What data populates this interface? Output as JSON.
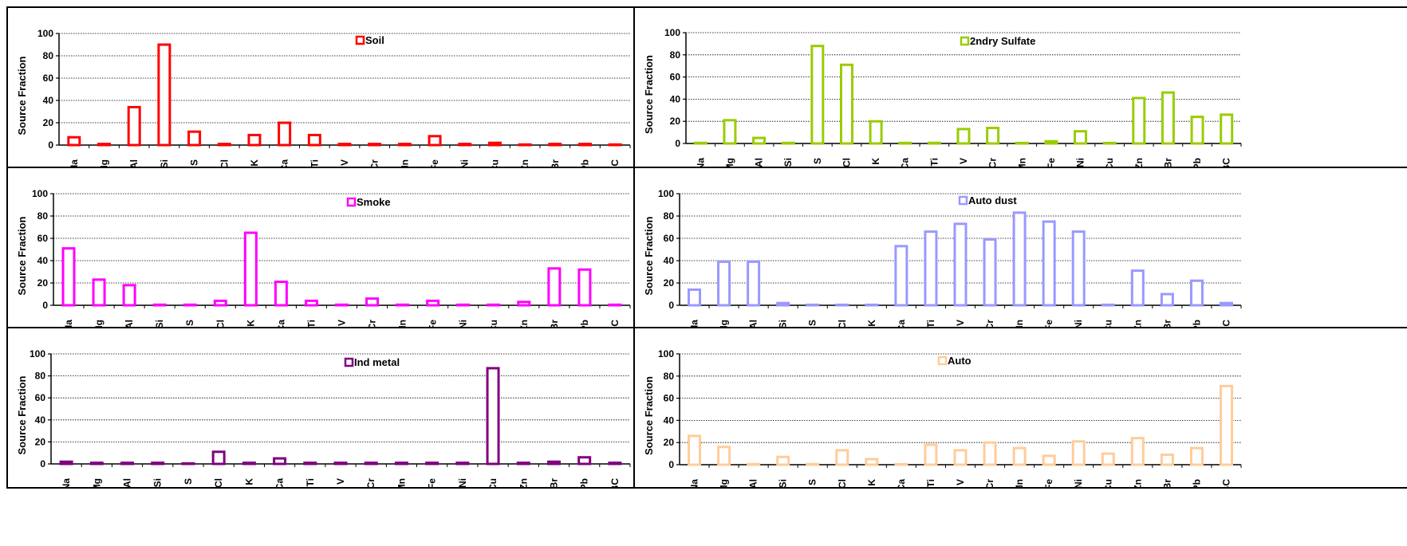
{
  "chart_data": [
    {
      "type": "bar",
      "series": [
        {
          "name": "Soil",
          "color": "#ff0000",
          "values": [
            7,
            1,
            34,
            90,
            12,
            1,
            9,
            20,
            9,
            1,
            1,
            1,
            8,
            1,
            2,
            0.5,
            1,
            1,
            0.5
          ]
        }
      ],
      "categories": [
        "Na",
        "Mg",
        "Al",
        "Si",
        "S",
        "Cl",
        "K",
        "Ca",
        "Ti",
        "V",
        "Cr",
        "Mn",
        "Fe",
        "Ni",
        "Cu",
        "Zn",
        "Br",
        "Pb",
        "BC"
      ],
      "ylabel": "Source Fraction",
      "ylim": [
        0,
        100
      ],
      "yticks": [
        "0",
        "20",
        "40",
        "60",
        "80",
        "100"
      ],
      "grid": true,
      "legend": "top-center"
    },
    {
      "type": "bar",
      "series": [
        {
          "name": "2ndry Sulfate",
          "color": "#99cc00",
          "values": [
            0.5,
            21,
            5,
            0.5,
            88,
            71,
            20,
            0.5,
            0.5,
            13,
            14,
            0.3,
            2,
            11,
            0.3,
            41,
            46,
            24,
            26
          ]
        }
      ],
      "categories": [
        "Na",
        "Mg",
        "Al",
        "Si",
        "S",
        "Cl",
        "K",
        "Ca",
        "Ti",
        "V",
        "Cr",
        "Mn",
        "Fe",
        "Ni",
        "Cu",
        "Zn",
        "Br",
        "Pb",
        "BC"
      ],
      "ylabel": "Source Fraction",
      "ylim": [
        0,
        100
      ],
      "yticks": [
        "0",
        "20",
        "40",
        "60",
        "80",
        "100"
      ],
      "grid": true,
      "legend": "top-center"
    },
    {
      "type": "bar",
      "series": [
        {
          "name": "Smoke",
          "color": "#ff00ff",
          "values": [
            51,
            23,
            18,
            0.5,
            0.5,
            4,
            65,
            21,
            4,
            0.5,
            6,
            0.5,
            4,
            0.5,
            0.5,
            3,
            33,
            32,
            0.5
          ]
        }
      ],
      "categories": [
        "Na",
        "Mg",
        "Al",
        "Si",
        "S",
        "Cl",
        "K",
        "Ca",
        "Ti",
        "V",
        "Cr",
        "Mn",
        "Fe",
        "Ni",
        "Cu",
        "Zn",
        "Br",
        "Pb",
        "BC"
      ],
      "ylabel": "Source Fraction",
      "ylim": [
        0,
        100
      ],
      "yticks": [
        "0",
        "20",
        "40",
        "60",
        "80",
        "100"
      ],
      "grid": true,
      "legend": "top-center"
    },
    {
      "type": "bar",
      "series": [
        {
          "name": "Auto dust",
          "color": "#9999ff",
          "values": [
            14,
            39,
            39,
            2,
            0.3,
            0.3,
            0.3,
            53,
            66,
            73,
            59,
            83,
            75,
            66,
            0.3,
            31,
            10,
            22,
            2
          ]
        }
      ],
      "categories": [
        "Na",
        "Mg",
        "Al",
        "Si",
        "S",
        "Cl",
        "K",
        "Ca",
        "Ti",
        "V",
        "Cr",
        "Mn",
        "Fe",
        "Ni",
        "Cu",
        "Zn",
        "Br",
        "Pb",
        "BC"
      ],
      "ylabel": "Source Fraction",
      "ylim": [
        0,
        100
      ],
      "yticks": [
        "0",
        "20",
        "40",
        "60",
        "80",
        "100"
      ],
      "grid": true,
      "legend": "top-center"
    },
    {
      "type": "bar",
      "series": [
        {
          "name": "Ind metal",
          "color": "#800080",
          "values": [
            2,
            1,
            1,
            1,
            0.3,
            11,
            1,
            5,
            1,
            1,
            1,
            1,
            1,
            1,
            87,
            1,
            2,
            6,
            1
          ]
        }
      ],
      "categories": [
        "Na",
        "Mg",
        "Al",
        "Si",
        "S",
        "Cl",
        "K",
        "Ca",
        "Ti",
        "V",
        "Cr",
        "Mn",
        "Fe",
        "Ni",
        "Cu",
        "Zn",
        "Br",
        "Pb",
        "BC"
      ],
      "ylabel": "Source Fraction",
      "ylim": [
        0,
        100
      ],
      "yticks": [
        "0",
        "20",
        "40",
        "60",
        "80",
        "100"
      ],
      "grid": true,
      "legend": "top-center"
    },
    {
      "type": "bar",
      "series": [
        {
          "name": "Auto",
          "color": "#ffcc99",
          "values": [
            26,
            16,
            0.5,
            7,
            0.5,
            13,
            5,
            0,
            18,
            13,
            20,
            15,
            8,
            21,
            10,
            24,
            9,
            15,
            71
          ]
        }
      ],
      "categories": [
        "Na",
        "Mg",
        "Al",
        "Si",
        "S",
        "Cl",
        "K",
        "Ca",
        "Ti",
        "V",
        "Cr",
        "Mn",
        "Fe",
        "Ni",
        "Cu",
        "Zn",
        "Br",
        "Pb",
        "BC"
      ],
      "ylabel": "Source Fraction",
      "ylim": [
        0,
        100
      ],
      "yticks": [
        "0",
        "20",
        "40",
        "60",
        "80",
        "100"
      ],
      "grid": true,
      "legend": "top-center"
    }
  ]
}
